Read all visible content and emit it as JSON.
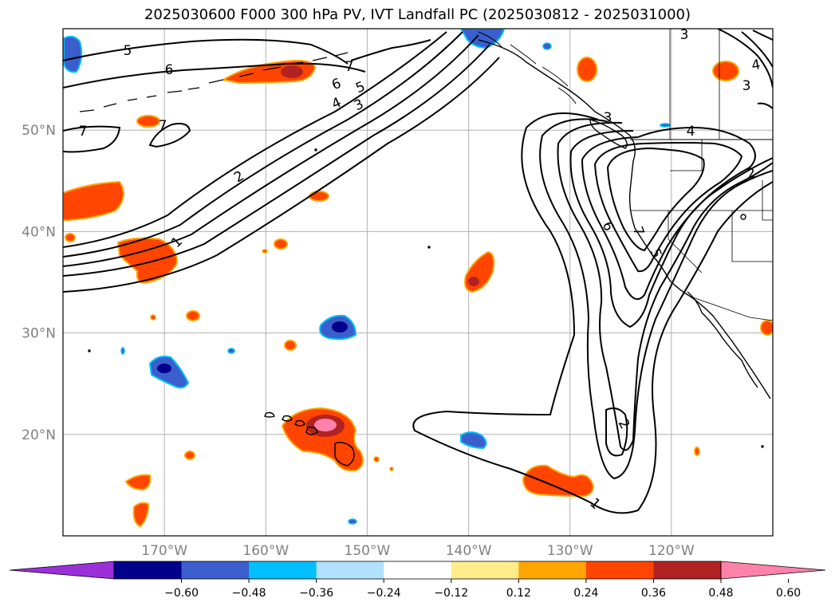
{
  "title": "2025030600 F000 300 hPa PV, IVT Landfall PC (2025030812 - 2025031000)",
  "lat_labels": [
    {
      "text": "50°N",
      "lat": 50
    },
    {
      "text": "40°N",
      "lat": 40
    },
    {
      "text": "30°N",
      "lat": 30
    },
    {
      "text": "20°N",
      "lat": 20
    }
  ],
  "lon_labels": [
    {
      "text": "170°W",
      "lon": -170
    },
    {
      "text": "160°W",
      "lon": -160
    },
    {
      "text": "150°W",
      "lon": -150
    },
    {
      "text": "140°W",
      "lon": -140
    },
    {
      "text": "130°W",
      "lon": -130
    },
    {
      "text": "120°W",
      "lon": -120
    }
  ],
  "colorbar": {
    "colors": [
      "#9b30d9",
      "#00008b",
      "#3a5fcd",
      "#00bfff",
      "#b0e2ff",
      "#ffffff",
      "#ffec8b",
      "#ffa500",
      "#ff4500",
      "#b22222",
      "#ff82ab"
    ],
    "tick_labels": [
      "−0.60",
      "−0.48",
      "−0.36",
      "−0.24",
      "−0.12",
      "0.12",
      "0.24",
      "0.36",
      "0.48",
      "0.60"
    ]
  },
  "contour_labels": [
    "5",
    "6",
    "7",
    "7",
    "6",
    "5",
    "4",
    "3",
    "2",
    "1",
    "7",
    "2",
    "3",
    "4",
    "4",
    "3",
    "2",
    "6",
    "7",
    "5",
    "3",
    "1"
  ]
}
